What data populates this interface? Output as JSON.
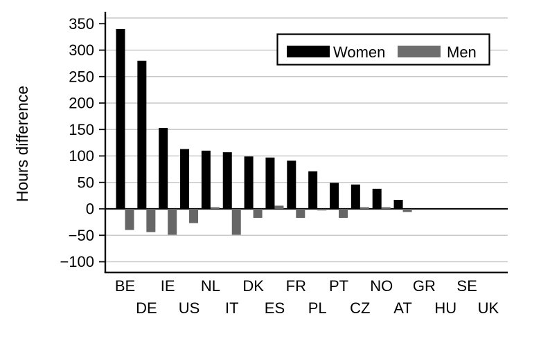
{
  "chart_data": {
    "type": "bar",
    "title": "",
    "xlabel": "",
    "ylabel": "Hours difference",
    "categories": [
      "BE",
      "DE",
      "IE",
      "US",
      "NL",
      "IT",
      "DK",
      "ES",
      "FR",
      "PL",
      "PT",
      "CZ",
      "NO",
      "AT",
      "GR",
      "HU",
      "SE",
      "UK"
    ],
    "series": [
      {
        "name": "Women",
        "color": "#000000",
        "values": [
          340,
          280,
          153,
          113,
          110,
          107,
          99,
          97,
          91,
          71,
          49,
          46,
          38,
          17,
          0,
          0,
          0,
          0
        ]
      },
      {
        "name": "Men",
        "color": "#666666",
        "values": [
          -40,
          -44,
          -49,
          -27,
          3,
          -49,
          -17,
          6,
          -17,
          -3,
          -17,
          3,
          3,
          -6,
          0,
          0,
          0,
          0
        ]
      }
    ],
    "yticks": [
      350,
      300,
      250,
      200,
      150,
      100,
      50,
      0,
      -50,
      -100
    ],
    "ylim": [
      -120,
      361
    ],
    "grid": true,
    "legend_position": "top-right",
    "legend_labels": [
      "Women",
      "Men"
    ]
  },
  "style": {
    "background": "#ffffff",
    "bar_women": "#000000",
    "bar_men": "#666666",
    "legend_men_swatch": "#6e6e6e",
    "gridline": "#c9c9c9",
    "axis": "#0d0d0d",
    "text": "#000000"
  }
}
